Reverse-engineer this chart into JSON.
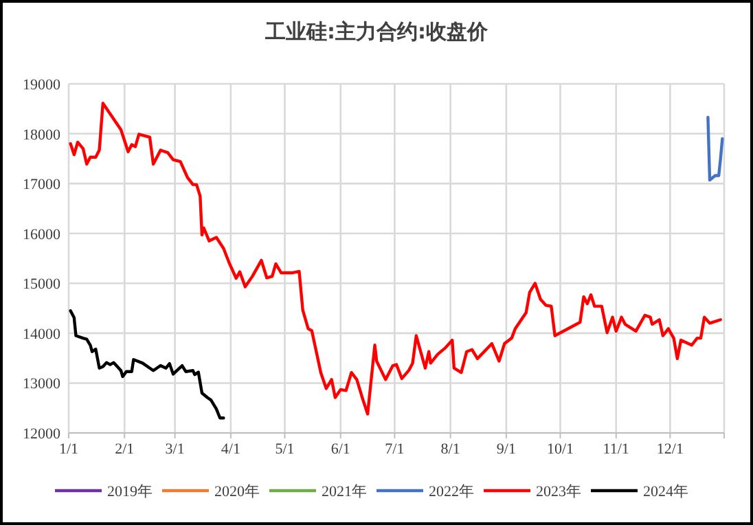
{
  "chart_data": {
    "type": "line",
    "title": "工业硅:主力合约:收盘价",
    "xlim": [
      "--01-01",
      "--12-31"
    ],
    "xticks": [
      {
        "value": "--01-01",
        "label": "1/1"
      },
      {
        "value": "--02-01",
        "label": "2/1"
      },
      {
        "value": "--03-01",
        "label": "3/1"
      },
      {
        "value": "--04-01",
        "label": "4/1"
      },
      {
        "value": "--05-01",
        "label": "5/1"
      },
      {
        "value": "--06-01",
        "label": "6/1"
      },
      {
        "value": "--07-01",
        "label": "7/1"
      },
      {
        "value": "--08-01",
        "label": "8/1"
      },
      {
        "value": "--09-01",
        "label": "9/1"
      },
      {
        "value": "--10-01",
        "label": "10/1"
      },
      {
        "value": "--11-01",
        "label": "11/1"
      },
      {
        "value": "--12-01",
        "label": "12/1"
      },
      {
        "value": "--12-31",
        "label": null
      }
    ],
    "ylim": [
      12000,
      19000
    ],
    "yticks": [
      12000,
      13000,
      14000,
      15000,
      16000,
      17000,
      18000,
      19000
    ],
    "grid": true,
    "legend": "bottom",
    "line_style": "solid",
    "marker": "none",
    "series": [
      {
        "name": "2019年",
        "color": "#7030a0"
      },
      {
        "name": "2020年",
        "color": "#ed7d31"
      },
      {
        "name": "2021年",
        "color": "#70ad47"
      },
      {
        "name": "2022年",
        "color": "#4472c4",
        "x": [
          "--12-22",
          "--12-23",
          "--12-26",
          "--12-28",
          "--12-29",
          "--12-30"
        ],
        "values": [
          18330,
          17070,
          17160,
          17160,
          17500,
          17900
        ]
      },
      {
        "name": "2023年",
        "color": "#ff0000",
        "x": [
          "--01-02",
          "--01-04",
          "--01-06",
          "--01-09",
          "--01-11",
          "--01-13",
          "--01-16",
          "--01-18",
          "--01-20",
          "--01-30",
          "--02-03",
          "--02-05",
          "--02-07",
          "--02-09",
          "--02-15",
          "--02-17",
          "--02-21",
          "--02-25",
          "--02-28",
          "--03-04",
          "--03-08",
          "--03-11",
          "--03-13",
          "--03-15",
          "--03-16",
          "--03-17",
          "--03-20",
          "--03-24",
          "--03-28",
          "--03-31",
          "--04-04",
          "--04-06",
          "--04-09",
          "--04-13",
          "--04-18",
          "--04-21",
          "--04-24",
          "--04-26",
          "--04-29",
          "--05-05",
          "--05-09",
          "--05-11",
          "--05-14",
          "--05-16",
          "--05-21",
          "--05-24",
          "--05-27",
          "--05-29",
          "--06-01",
          "--06-04",
          "--06-07",
          "--06-10",
          "--06-13",
          "--06-16",
          "--06-20",
          "--06-21",
          "--06-26",
          "--06-30",
          "--07-02",
          "--07-05",
          "--07-09",
          "--07-11",
          "--07-13",
          "--07-18",
          "--07-20",
          "--07-21",
          "--07-25",
          "--07-29",
          "--08-02",
          "--08-03",
          "--08-07",
          "--08-10",
          "--08-13",
          "--08-16",
          "--08-24",
          "--08-28",
          "--08-31",
          "--09-04",
          "--09-06",
          "--09-12",
          "--09-14",
          "--09-17",
          "--09-20",
          "--09-23",
          "--09-26",
          "--09-28",
          "--10-10",
          "--10-12",
          "--10-14",
          "--10-16",
          "--10-18",
          "--10-20",
          "--10-24",
          "--10-27",
          "--10-30",
          "--11-01",
          "--11-04",
          "--11-06",
          "--11-12",
          "--11-17",
          "--11-20",
          "--11-21",
          "--11-25",
          "--11-27",
          "--11-30",
          "--12-03",
          "--12-05",
          "--12-07",
          "--12-13",
          "--12-16",
          "--12-18",
          "--12-20",
          "--12-23",
          "--12-29"
        ],
        "values": [
          17800,
          17580,
          17830,
          17700,
          17390,
          17530,
          17530,
          17670,
          18610,
          18080,
          17640,
          17780,
          17740,
          17990,
          17930,
          17390,
          17670,
          17620,
          17480,
          17440,
          17120,
          16980,
          16980,
          16750,
          15970,
          16110,
          15850,
          15920,
          15700,
          15420,
          15100,
          15230,
          14930,
          15140,
          15460,
          15110,
          15140,
          15390,
          15210,
          15210,
          15240,
          14460,
          14090,
          14050,
          13210,
          12890,
          13070,
          12710,
          12870,
          12850,
          13210,
          13070,
          12710,
          12380,
          13760,
          13440,
          13070,
          13350,
          13370,
          13090,
          13260,
          13400,
          13950,
          13300,
          13630,
          13400,
          13580,
          13700,
          13860,
          13300,
          13210,
          13630,
          13670,
          13490,
          13790,
          13440,
          13790,
          13900,
          14090,
          14410,
          14820,
          15000,
          14680,
          14560,
          14540,
          13950,
          14180,
          14220,
          14730,
          14590,
          14770,
          14540,
          14540,
          14010,
          14320,
          14040,
          14320,
          14180,
          14040,
          14360,
          14320,
          14180,
          14270,
          13950,
          14090,
          13900,
          13490,
          13860,
          13760,
          13900,
          13900,
          14320,
          14200,
          14270
        ]
      },
      {
        "name": "2024年",
        "color": "#000000",
        "x": [
          "--01-02",
          "--01-04",
          "--01-05",
          "--01-09",
          "--01-11",
          "--01-13",
          "--01-14",
          "--01-16",
          "--01-18",
          "--01-20",
          "--01-22",
          "--01-24",
          "--01-26",
          "--01-30",
          "--01-31",
          "--02-02",
          "--02-05",
          "--02-06",
          "--02-11",
          "--02-17",
          "--02-21",
          "--02-24",
          "--02-26",
          "--02-28",
          "--03-05",
          "--03-07",
          "--03-11",
          "--03-12",
          "--03-14",
          "--03-16",
          "--03-19",
          "--03-21",
          "--03-24",
          "--03-26",
          "--03-28"
        ],
        "values": [
          14450,
          14310,
          13950,
          13900,
          13880,
          13760,
          13630,
          13680,
          13300,
          13330,
          13410,
          13370,
          13410,
          13250,
          13130,
          13230,
          13230,
          13470,
          13400,
          13250,
          13350,
          13300,
          13390,
          13180,
          13350,
          13230,
          13250,
          13170,
          13220,
          12800,
          12710,
          12660,
          12480,
          12300,
          12300
        ]
      }
    ]
  }
}
